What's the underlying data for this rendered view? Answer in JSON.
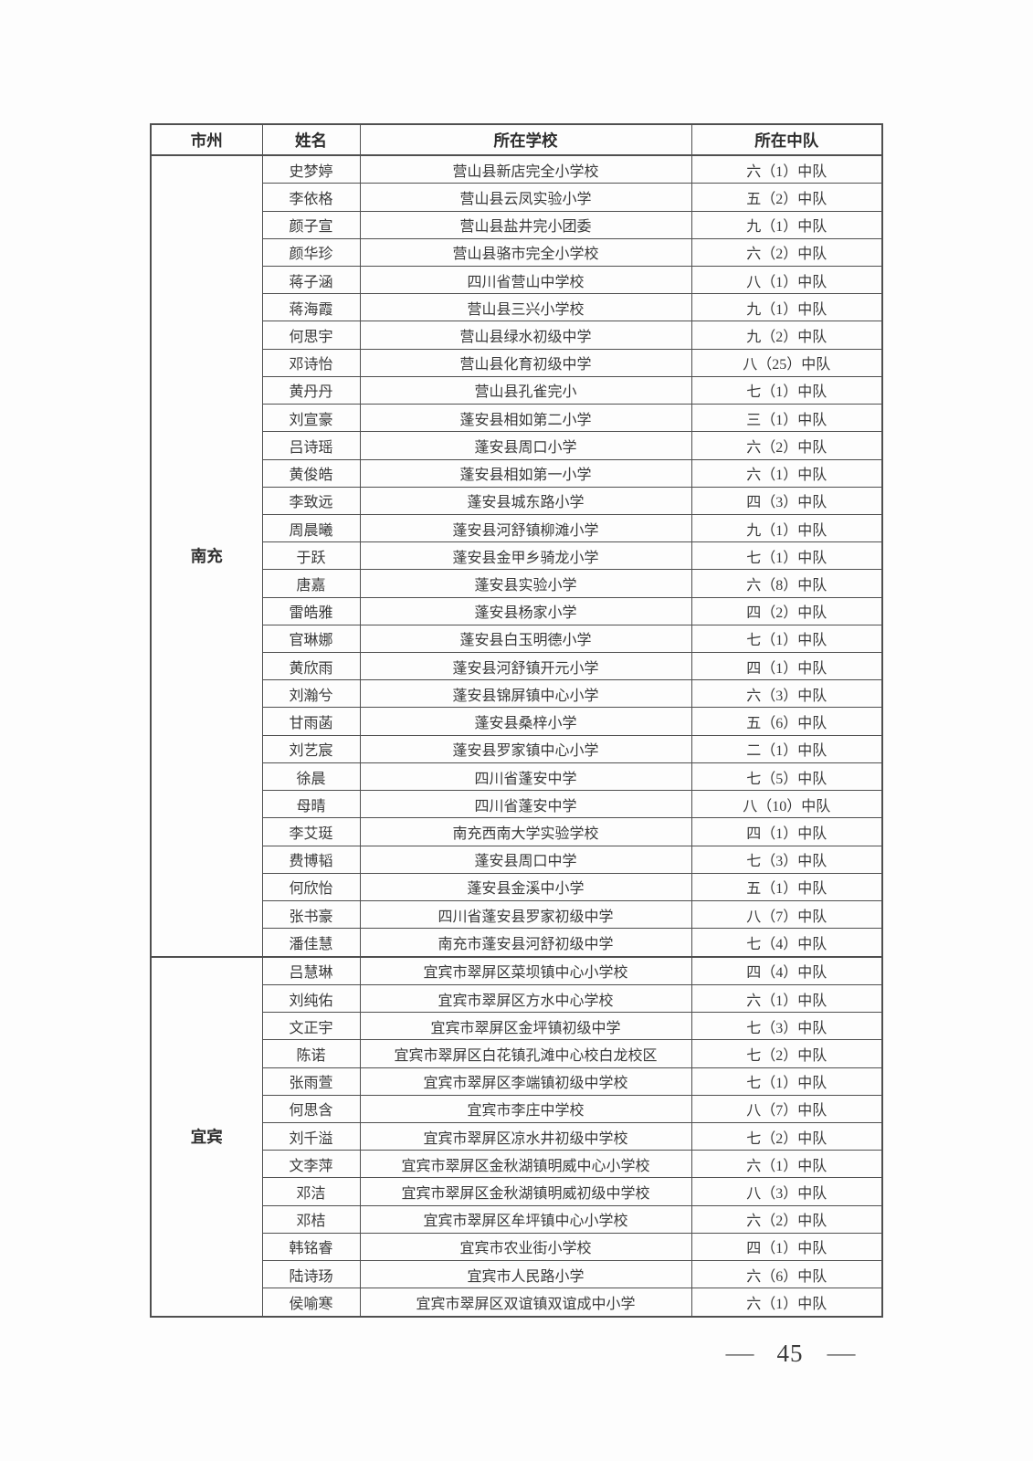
{
  "table": {
    "headers": {
      "city": "市州",
      "name": "姓名",
      "school": "所在学校",
      "squad": "所在中队"
    },
    "groups": [
      {
        "city": "南充",
        "rows": [
          {
            "name": "史梦婷",
            "school": "营山县新店完全小学校",
            "squad": "六（1）中队"
          },
          {
            "name": "李依格",
            "school": "营山县云凤实验小学",
            "squad": "五（2）中队"
          },
          {
            "name": "颜子宣",
            "school": "营山县盐井完小团委",
            "squad": "九（1）中队"
          },
          {
            "name": "颜华珍",
            "school": "营山县骆市完全小学校",
            "squad": "六（2）中队"
          },
          {
            "name": "蒋子涵",
            "school": "四川省营山中学校",
            "squad": "八（1）中队"
          },
          {
            "name": "蒋海霞",
            "school": "营山县三兴小学校",
            "squad": "九（1）中队"
          },
          {
            "name": "何思宇",
            "school": "营山县绿水初级中学",
            "squad": "九（2）中队"
          },
          {
            "name": "邓诗怡",
            "school": "营山县化育初级中学",
            "squad": "八（25）中队"
          },
          {
            "name": "黄丹丹",
            "school": "营山县孔雀完小",
            "squad": "七（1）中队"
          },
          {
            "name": "刘宣豪",
            "school": "蓬安县相如第二小学",
            "squad": "三（1）中队"
          },
          {
            "name": "吕诗瑶",
            "school": "蓬安县周口小学",
            "squad": "六（2）中队"
          },
          {
            "name": "黄俊皓",
            "school": "蓬安县相如第一小学",
            "squad": "六（1）中队"
          },
          {
            "name": "李致远",
            "school": "蓬安县城东路小学",
            "squad": "四（3）中队"
          },
          {
            "name": "周晨曦",
            "school": "蓬安县河舒镇柳滩小学",
            "squad": "九（1）中队"
          },
          {
            "name": "于跃",
            "school": "蓬安县金甲乡骑龙小学",
            "squad": "七（1）中队"
          },
          {
            "name": "唐嘉",
            "school": "蓬安县实验小学",
            "squad": "六（8）中队"
          },
          {
            "name": "雷皓雅",
            "school": "蓬安县杨家小学",
            "squad": "四（2）中队"
          },
          {
            "name": "官琳娜",
            "school": "蓬安县白玉明德小学",
            "squad": "七（1）中队"
          },
          {
            "name": "黄欣雨",
            "school": "蓬安县河舒镇开元小学",
            "squad": "四（1）中队"
          },
          {
            "name": "刘瀚兮",
            "school": "蓬安县锦屏镇中心小学",
            "squad": "六（3）中队"
          },
          {
            "name": "甘雨菡",
            "school": "蓬安县桑梓小学",
            "squad": "五（6）中队"
          },
          {
            "name": "刘艺宸",
            "school": "蓬安县罗家镇中心小学",
            "squad": "二（1）中队"
          },
          {
            "name": "徐晨",
            "school": "四川省蓬安中学",
            "squad": "七（5）中队"
          },
          {
            "name": "母晴",
            "school": "四川省蓬安中学",
            "squad": "八（10）中队"
          },
          {
            "name": "李艾珽",
            "school": "南充西南大学实验学校",
            "squad": "四（1）中队"
          },
          {
            "name": "费博韬",
            "school": "蓬安县周口中学",
            "squad": "七（3）中队"
          },
          {
            "name": "何欣怡",
            "school": "蓬安县金溪中小学",
            "squad": "五（1）中队"
          },
          {
            "name": "张书豪",
            "school": "四川省蓬安县罗家初级中学",
            "squad": "八（7）中队"
          },
          {
            "name": "潘佳慧",
            "school": "南充市蓬安县河舒初级中学",
            "squad": "七（4）中队"
          }
        ]
      },
      {
        "city": "宜宾",
        "rows": [
          {
            "name": "吕慧琳",
            "school": "宜宾市翠屏区菜坝镇中心小学校",
            "squad": "四（4）中队"
          },
          {
            "name": "刘纯佑",
            "school": "宜宾市翠屏区方水中心学校",
            "squad": "六（1）中队"
          },
          {
            "name": "文正宇",
            "school": "宜宾市翠屏区金坪镇初级中学",
            "squad": "七（3）中队"
          },
          {
            "name": "陈诺",
            "school": "宜宾市翠屏区白花镇孔滩中心校白龙校区",
            "squad": "七（2）中队"
          },
          {
            "name": "张雨萱",
            "school": "宜宾市翠屏区李端镇初级中学校",
            "squad": "七（1）中队"
          },
          {
            "name": "何思含",
            "school": "宜宾市李庄中学校",
            "squad": "八（7）中队"
          },
          {
            "name": "刘千溢",
            "school": "宜宾市翠屏区凉水井初级中学校",
            "squad": "七（2）中队"
          },
          {
            "name": "文李萍",
            "school": "宜宾市翠屏区金秋湖镇明威中心小学校",
            "squad": "六（1）中队"
          },
          {
            "name": "邓洁",
            "school": "宜宾市翠屏区金秋湖镇明威初级中学校",
            "squad": "八（3）中队"
          },
          {
            "name": "邓桔",
            "school": "宜宾市翠屏区牟坪镇中心小学校",
            "squad": "六（2）中队"
          },
          {
            "name": "韩铭睿",
            "school": "宜宾市农业街小学校",
            "squad": "四（1）中队"
          },
          {
            "name": "陆诗玚",
            "school": "宜宾市人民路小学",
            "squad": "六（6）中队"
          },
          {
            "name": "侯喻寒",
            "school": "宜宾市翠屏区双谊镇双谊成中小学",
            "squad": "六（1）中队"
          }
        ]
      }
    ]
  },
  "footer": {
    "dash": "—",
    "page_number": "45"
  },
  "colors": {
    "text": "#3a3a3a",
    "border": "#4f4f4f",
    "background": "#fdfdfd"
  }
}
